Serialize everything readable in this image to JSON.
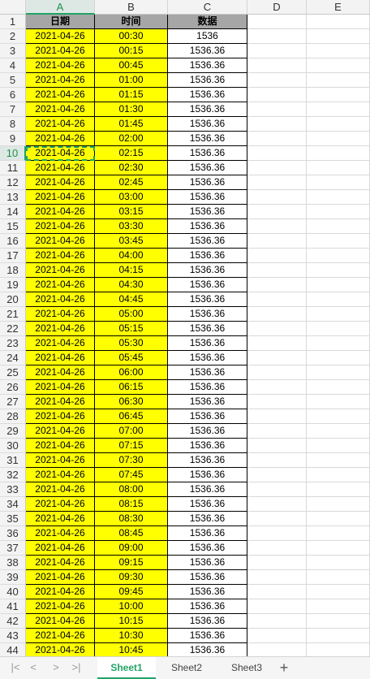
{
  "columns": [
    "A",
    "B",
    "C",
    "D",
    "E"
  ],
  "selected_column": "A",
  "selected_row": 10,
  "header_row": {
    "row": 1,
    "date": "日期",
    "time": "时间",
    "value": "数据"
  },
  "rows": [
    {
      "row": 2,
      "date": "2021-04-26",
      "time": "00:30",
      "value": "1536"
    },
    {
      "row": 3,
      "date": "2021-04-26",
      "time": "00:15",
      "value": "1536.36"
    },
    {
      "row": 4,
      "date": "2021-04-26",
      "time": "00:45",
      "value": "1536.36"
    },
    {
      "row": 5,
      "date": "2021-04-26",
      "time": "01:00",
      "value": "1536.36"
    },
    {
      "row": 6,
      "date": "2021-04-26",
      "time": "01:15",
      "value": "1536.36"
    },
    {
      "row": 7,
      "date": "2021-04-26",
      "time": "01:30",
      "value": "1536.36"
    },
    {
      "row": 8,
      "date": "2021-04-26",
      "time": "01:45",
      "value": "1536.36"
    },
    {
      "row": 9,
      "date": "2021-04-26",
      "time": "02:00",
      "value": "1536.36"
    },
    {
      "row": 10,
      "date": "2021-04-26",
      "time": "02:15",
      "value": "1536.36"
    },
    {
      "row": 11,
      "date": "2021-04-26",
      "time": "02:30",
      "value": "1536.36"
    },
    {
      "row": 12,
      "date": "2021-04-26",
      "time": "02:45",
      "value": "1536.36"
    },
    {
      "row": 13,
      "date": "2021-04-26",
      "time": "03:00",
      "value": "1536.36"
    },
    {
      "row": 14,
      "date": "2021-04-26",
      "time": "03:15",
      "value": "1536.36"
    },
    {
      "row": 15,
      "date": "2021-04-26",
      "time": "03:30",
      "value": "1536.36"
    },
    {
      "row": 16,
      "date": "2021-04-26",
      "time": "03:45",
      "value": "1536.36"
    },
    {
      "row": 17,
      "date": "2021-04-26",
      "time": "04:00",
      "value": "1536.36"
    },
    {
      "row": 18,
      "date": "2021-04-26",
      "time": "04:15",
      "value": "1536.36"
    },
    {
      "row": 19,
      "date": "2021-04-26",
      "time": "04:30",
      "value": "1536.36"
    },
    {
      "row": 20,
      "date": "2021-04-26",
      "time": "04:45",
      "value": "1536.36"
    },
    {
      "row": 21,
      "date": "2021-04-26",
      "time": "05:00",
      "value": "1536.36"
    },
    {
      "row": 22,
      "date": "2021-04-26",
      "time": "05:15",
      "value": "1536.36"
    },
    {
      "row": 23,
      "date": "2021-04-26",
      "time": "05:30",
      "value": "1536.36"
    },
    {
      "row": 24,
      "date": "2021-04-26",
      "time": "05:45",
      "value": "1536.36"
    },
    {
      "row": 25,
      "date": "2021-04-26",
      "time": "06:00",
      "value": "1536.36"
    },
    {
      "row": 26,
      "date": "2021-04-26",
      "time": "06:15",
      "value": "1536.36"
    },
    {
      "row": 27,
      "date": "2021-04-26",
      "time": "06:30",
      "value": "1536.36"
    },
    {
      "row": 28,
      "date": "2021-04-26",
      "time": "06:45",
      "value": "1536.36"
    },
    {
      "row": 29,
      "date": "2021-04-26",
      "time": "07:00",
      "value": "1536.36"
    },
    {
      "row": 30,
      "date": "2021-04-26",
      "time": "07:15",
      "value": "1536.36"
    },
    {
      "row": 31,
      "date": "2021-04-26",
      "time": "07:30",
      "value": "1536.36"
    },
    {
      "row": 32,
      "date": "2021-04-26",
      "time": "07:45",
      "value": "1536.36"
    },
    {
      "row": 33,
      "date": "2021-04-26",
      "time": "08:00",
      "value": "1536.36"
    },
    {
      "row": 34,
      "date": "2021-04-26",
      "time": "08:15",
      "value": "1536.36"
    },
    {
      "row": 35,
      "date": "2021-04-26",
      "time": "08:30",
      "value": "1536.36"
    },
    {
      "row": 36,
      "date": "2021-04-26",
      "time": "08:45",
      "value": "1536.36"
    },
    {
      "row": 37,
      "date": "2021-04-26",
      "time": "09:00",
      "value": "1536.36"
    },
    {
      "row": 38,
      "date": "2021-04-26",
      "time": "09:15",
      "value": "1536.36"
    },
    {
      "row": 39,
      "date": "2021-04-26",
      "time": "09:30",
      "value": "1536.36"
    },
    {
      "row": 40,
      "date": "2021-04-26",
      "time": "09:45",
      "value": "1536.36"
    },
    {
      "row": 41,
      "date": "2021-04-26",
      "time": "10:00",
      "value": "1536.36"
    },
    {
      "row": 42,
      "date": "2021-04-26",
      "time": "10:15",
      "value": "1536.36"
    },
    {
      "row": 43,
      "date": "2021-04-26",
      "time": "10:30",
      "value": "1536.36"
    },
    {
      "row": 44,
      "date": "2021-04-26",
      "time": "10:45",
      "value": "1536.36"
    }
  ],
  "sheet_tabs": [
    {
      "label": "Sheet1",
      "active": true
    },
    {
      "label": "Sheet2",
      "active": false
    },
    {
      "label": "Sheet3",
      "active": false
    }
  ],
  "add_sheet_label": "+",
  "nav_icons": [
    "first-sheet-icon",
    "prev-sheet-icon",
    "next-sheet-icon",
    "last-sheet-icon"
  ],
  "colors": {
    "highlight_fill": "#ffff00",
    "header_fill": "#a6a6a6",
    "selection_accent": "#21a366"
  }
}
